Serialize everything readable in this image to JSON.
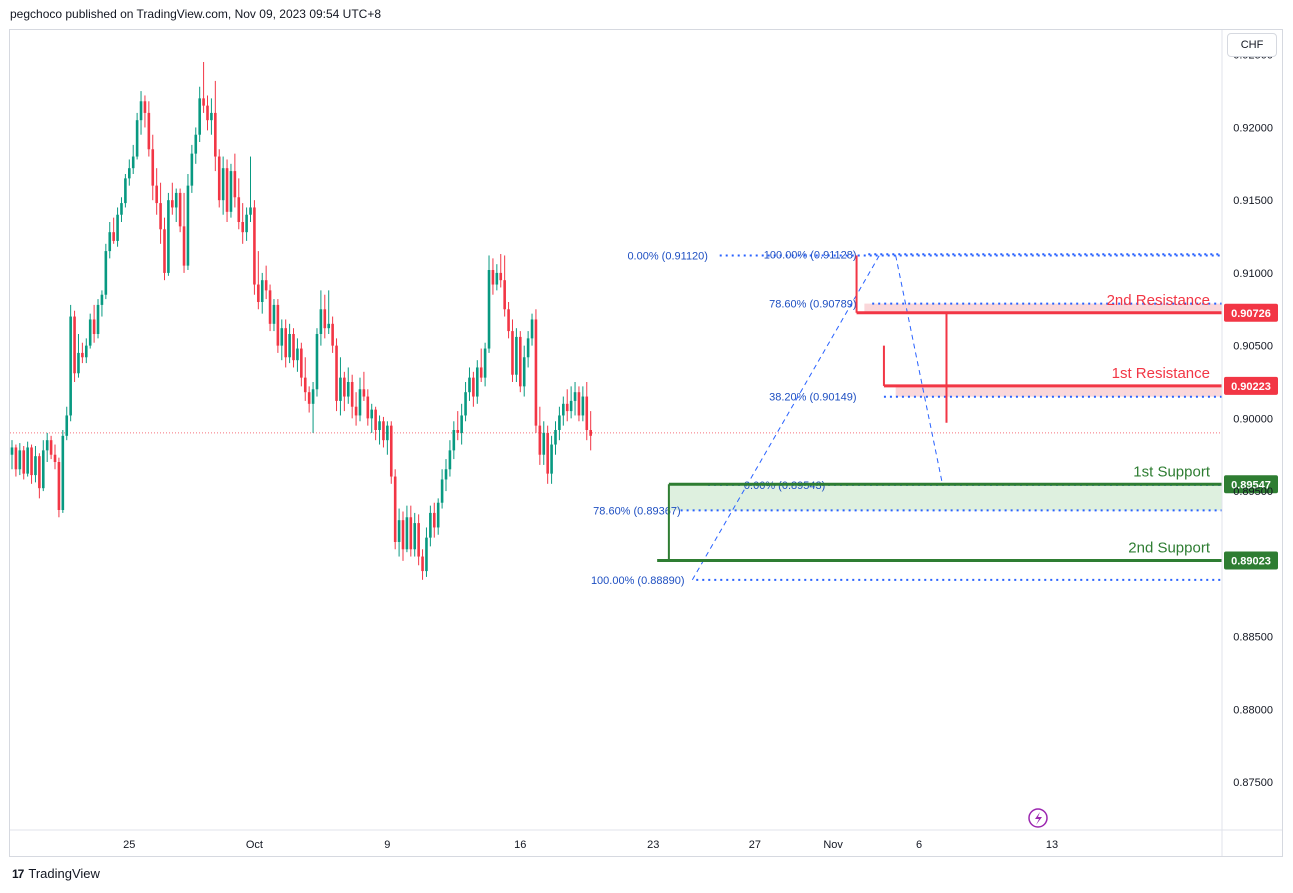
{
  "header": {
    "published_by": "pegchoco published on TradingView.com, Nov 09, 2023 09:54 UTC+8"
  },
  "currency_label": "CHF",
  "footer": {
    "brand": "TradingView",
    "logo_text": "17"
  },
  "chart_data": {
    "type": "candlestick",
    "title": "",
    "xlabel": "",
    "ylabel": "",
    "ylim": [
      0.8717,
      0.9267
    ],
    "y_ticks": [
      "0.92500",
      "0.92000",
      "0.91500",
      "0.91000",
      "0.90500",
      "0.90000",
      "0.89500",
      "0.88500",
      "0.88000",
      "0.87500"
    ],
    "x_ticks": [
      {
        "label": "25",
        "bar": 30
      },
      {
        "label": "Oct",
        "bar": 62
      },
      {
        "label": "9",
        "bar": 96
      },
      {
        "label": "16",
        "bar": 130
      },
      {
        "label": "23",
        "bar": 164
      },
      {
        "label": "27",
        "bar": 190
      },
      {
        "label": "Nov",
        "bar": 210
      },
      {
        "label": "6",
        "bar": 232
      },
      {
        "label": "13",
        "bar": 266
      }
    ],
    "last_price": 0.899,
    "price_labels": [
      {
        "text": "0.90726",
        "value": 0.90726,
        "color": "#f23645"
      },
      {
        "text": "0.90223",
        "value": 0.90223,
        "color": "#f23645"
      },
      {
        "text": "0.89547",
        "value": 0.89547,
        "color": "#2e7d32"
      },
      {
        "text": "0.89023",
        "value": 0.89023,
        "color": "#2e7d32"
      }
    ],
    "levels": [
      {
        "name": "2nd Resistance",
        "value": 0.90726,
        "color": "#f23645",
        "from_bar": 216
      },
      {
        "name": "1st Resistance",
        "value": 0.90223,
        "color": "#f23645",
        "from_bar": 223
      },
      {
        "name": "1st Support",
        "value": 0.89547,
        "color": "#2e7d32",
        "from_bar": 168
      },
      {
        "name": "2nd Support",
        "value": 0.89023,
        "color": "#2e7d32",
        "from_bar": 165
      }
    ],
    "fib_levels": [
      {
        "label": "0.00% (0.91120)",
        "value": 0.9112
      },
      {
        "label": "100.00% (0.91128)",
        "value": 0.91128
      },
      {
        "label": "78.60% (0.90789)",
        "value": 0.90789
      },
      {
        "label": "38.20% (0.90149)",
        "value": 0.90149
      },
      {
        "label": "0.00% (0.89543)",
        "value": 0.89543
      },
      {
        "label": "78.60% (0.89367)",
        "value": 0.89367
      },
      {
        "label": "100.00% (0.88890)",
        "value": 0.8889
      }
    ],
    "candles": [
      [
        0.8975,
        0.8985,
        0.8965,
        0.898
      ],
      [
        0.898,
        0.8982,
        0.896,
        0.8965
      ],
      [
        0.8965,
        0.8983,
        0.8961,
        0.8978
      ],
      [
        0.8978,
        0.8981,
        0.8958,
        0.8962
      ],
      [
        0.8962,
        0.8984,
        0.896,
        0.898
      ],
      [
        0.898,
        0.8982,
        0.8955,
        0.8961
      ],
      [
        0.8961,
        0.8981,
        0.8956,
        0.8974
      ],
      [
        0.8974,
        0.8976,
        0.8945,
        0.8952
      ],
      [
        0.8952,
        0.8985,
        0.895,
        0.8978
      ],
      [
        0.8978,
        0.899,
        0.897,
        0.8985
      ],
      [
        0.8985,
        0.8988,
        0.8972,
        0.8975
      ],
      [
        0.8975,
        0.8982,
        0.8965,
        0.897
      ],
      [
        0.897,
        0.8973,
        0.8932,
        0.8937
      ],
      [
        0.8937,
        0.8992,
        0.8935,
        0.8988
      ],
      [
        0.8988,
        0.9008,
        0.8985,
        0.9002
      ],
      [
        0.9002,
        0.9078,
        0.8998,
        0.907
      ],
      [
        0.907,
        0.9074,
        0.9025,
        0.9031
      ],
      [
        0.9031,
        0.9058,
        0.9028,
        0.9045
      ],
      [
        0.9045,
        0.9052,
        0.9038,
        0.9042
      ],
      [
        0.9042,
        0.9055,
        0.9038,
        0.905
      ],
      [
        0.905,
        0.9072,
        0.9048,
        0.9068
      ],
      [
        0.9068,
        0.9078,
        0.9052,
        0.9058
      ],
      [
        0.9058,
        0.9082,
        0.9055,
        0.9078
      ],
      [
        0.9078,
        0.9088,
        0.907,
        0.9085
      ],
      [
        0.9085,
        0.912,
        0.9082,
        0.9115
      ],
      [
        0.9115,
        0.9135,
        0.911,
        0.9128
      ],
      [
        0.9128,
        0.9138,
        0.912,
        0.9122
      ],
      [
        0.9122,
        0.9145,
        0.9118,
        0.914
      ],
      [
        0.914,
        0.9152,
        0.9135,
        0.9148
      ],
      [
        0.9148,
        0.9168,
        0.9145,
        0.9165
      ],
      [
        0.9165,
        0.9178,
        0.916,
        0.9172
      ],
      [
        0.9172,
        0.9188,
        0.9168,
        0.918
      ],
      [
        0.918,
        0.921,
        0.9178,
        0.9205
      ],
      [
        0.9205,
        0.9225,
        0.9195,
        0.9218
      ],
      [
        0.9218,
        0.9222,
        0.92,
        0.921
      ],
      [
        0.921,
        0.9218,
        0.918,
        0.9185
      ],
      [
        0.9185,
        0.9195,
        0.915,
        0.916
      ],
      [
        0.916,
        0.9172,
        0.914,
        0.9148
      ],
      [
        0.9148,
        0.9162,
        0.912,
        0.913
      ],
      [
        0.913,
        0.9138,
        0.9095,
        0.91
      ],
      [
        0.91,
        0.9155,
        0.9098,
        0.915
      ],
      [
        0.915,
        0.9162,
        0.914,
        0.9145
      ],
      [
        0.9145,
        0.9158,
        0.9135,
        0.9155
      ],
      [
        0.9155,
        0.9158,
        0.9128,
        0.9132
      ],
      [
        0.9132,
        0.9155,
        0.91,
        0.9105
      ],
      [
        0.9105,
        0.9168,
        0.9102,
        0.916
      ],
      [
        0.916,
        0.9188,
        0.9155,
        0.9182
      ],
      [
        0.9182,
        0.92,
        0.9175,
        0.9195
      ],
      [
        0.9195,
        0.9228,
        0.919,
        0.922
      ],
      [
        0.922,
        0.9245,
        0.921,
        0.9215
      ],
      [
        0.9215,
        0.9222,
        0.9198,
        0.9205
      ],
      [
        0.9205,
        0.922,
        0.9195,
        0.921
      ],
      [
        0.921,
        0.9232,
        0.917,
        0.918
      ],
      [
        0.918,
        0.9185,
        0.9145,
        0.915
      ],
      [
        0.915,
        0.918,
        0.914,
        0.9172
      ],
      [
        0.9172,
        0.9178,
        0.9135,
        0.9142
      ],
      [
        0.9142,
        0.9175,
        0.9138,
        0.917
      ],
      [
        0.917,
        0.9182,
        0.9145,
        0.9152
      ],
      [
        0.9152,
        0.9165,
        0.913,
        0.9135
      ],
      [
        0.9135,
        0.9148,
        0.912,
        0.9128
      ],
      [
        0.9128,
        0.9145,
        0.9122,
        0.914
      ],
      [
        0.914,
        0.918,
        0.9135,
        0.9145
      ],
      [
        0.9145,
        0.915,
        0.9085,
        0.9092
      ],
      [
        0.9092,
        0.9115,
        0.9075,
        0.908
      ],
      [
        0.908,
        0.91,
        0.9072,
        0.9095
      ],
      [
        0.9095,
        0.9105,
        0.9082,
        0.9088
      ],
      [
        0.9088,
        0.9092,
        0.906,
        0.9065
      ],
      [
        0.9065,
        0.9082,
        0.906,
        0.9078
      ],
      [
        0.9078,
        0.9082,
        0.9045,
        0.905
      ],
      [
        0.905,
        0.9068,
        0.904,
        0.9062
      ],
      [
        0.9062,
        0.9068,
        0.9035,
        0.9042
      ],
      [
        0.9042,
        0.9065,
        0.9038,
        0.9058
      ],
      [
        0.9058,
        0.9062,
        0.9035,
        0.904
      ],
      [
        0.904,
        0.9055,
        0.9032,
        0.9048
      ],
      [
        0.9048,
        0.9052,
        0.9022,
        0.9028
      ],
      [
        0.9028,
        0.9042,
        0.9012,
        0.9018
      ],
      [
        0.9018,
        0.9022,
        0.9004,
        0.901
      ],
      [
        0.901,
        0.9025,
        0.899,
        0.902
      ],
      [
        0.902,
        0.9062,
        0.9015,
        0.9058
      ],
      [
        0.9058,
        0.9088,
        0.905,
        0.9075
      ],
      [
        0.9075,
        0.9085,
        0.9055,
        0.9062
      ],
      [
        0.9062,
        0.9088,
        0.9058,
        0.9065
      ],
      [
        0.9065,
        0.907,
        0.9045,
        0.905
      ],
      [
        0.905,
        0.9055,
        0.9005,
        0.9012
      ],
      [
        0.9012,
        0.9042,
        0.9002,
        0.9028
      ],
      [
        0.9028,
        0.9032,
        0.9005,
        0.9015
      ],
      [
        0.9015,
        0.9035,
        0.901,
        0.9025
      ],
      [
        0.9025,
        0.903,
        0.9,
        0.9008
      ],
      [
        0.9008,
        0.9018,
        0.8995,
        0.9002
      ],
      [
        0.9002,
        0.9028,
        0.8998,
        0.902
      ],
      [
        0.902,
        0.9032,
        0.9012,
        0.9015
      ],
      [
        0.9015,
        0.902,
        0.8995,
        0.9
      ],
      [
        0.9,
        0.901,
        0.899,
        0.9006
      ],
      [
        0.9006,
        0.9008,
        0.8985,
        0.8992
      ],
      [
        0.8992,
        0.9002,
        0.8982,
        0.8998
      ],
      [
        0.8998,
        0.9001,
        0.898,
        0.8985
      ],
      [
        0.8985,
        0.8998,
        0.8975,
        0.8995
      ],
      [
        0.8995,
        0.8998,
        0.8955,
        0.896
      ],
      [
        0.896,
        0.8965,
        0.891,
        0.8915
      ],
      [
        0.8915,
        0.8938,
        0.8905,
        0.893
      ],
      [
        0.893,
        0.8936,
        0.8902,
        0.891
      ],
      [
        0.891,
        0.894,
        0.8908,
        0.8932
      ],
      [
        0.8932,
        0.894,
        0.8905,
        0.891
      ],
      [
        0.891,
        0.8935,
        0.8905,
        0.8928
      ],
      [
        0.8928,
        0.8934,
        0.8899,
        0.8905
      ],
      [
        0.8905,
        0.891,
        0.8889,
        0.8895
      ],
      [
        0.8895,
        0.8925,
        0.8891,
        0.8918
      ],
      [
        0.8918,
        0.894,
        0.8912,
        0.8935
      ],
      [
        0.8935,
        0.8942,
        0.8918,
        0.8925
      ],
      [
        0.8925,
        0.8945,
        0.892,
        0.8942
      ],
      [
        0.8942,
        0.8965,
        0.8938,
        0.8958
      ],
      [
        0.8958,
        0.8972,
        0.895,
        0.8965
      ],
      [
        0.8965,
        0.8985,
        0.896,
        0.8978
      ],
      [
        0.8978,
        0.8998,
        0.8972,
        0.8992
      ],
      [
        0.8992,
        0.9005,
        0.8985,
        0.899
      ],
      [
        0.899,
        0.901,
        0.8982,
        0.9002
      ],
      [
        0.9002,
        0.9025,
        0.8998,
        0.9018
      ],
      [
        0.9018,
        0.9035,
        0.9012,
        0.9028
      ],
      [
        0.9028,
        0.9032,
        0.9008,
        0.9015
      ],
      [
        0.9015,
        0.904,
        0.901,
        0.9035
      ],
      [
        0.9035,
        0.9048,
        0.9025,
        0.9028
      ],
      [
        0.9028,
        0.9052,
        0.9022,
        0.9048
      ],
      [
        0.9048,
        0.9112,
        0.9045,
        0.9102
      ],
      [
        0.9102,
        0.911,
        0.9085,
        0.9092
      ],
      [
        0.9092,
        0.9106,
        0.9088,
        0.91
      ],
      [
        0.91,
        0.9113,
        0.909,
        0.9095
      ],
      [
        0.9095,
        0.9112,
        0.907,
        0.9075
      ],
      [
        0.9075,
        0.908,
        0.9055,
        0.906
      ],
      [
        0.906,
        0.9068,
        0.9025,
        0.903
      ],
      [
        0.903,
        0.9062,
        0.9025,
        0.9056
      ],
      [
        0.9056,
        0.906,
        0.9018,
        0.9022
      ],
      [
        0.9022,
        0.905,
        0.9015,
        0.9042
      ],
      [
        0.9042,
        0.906,
        0.9035,
        0.9055
      ],
      [
        0.9055,
        0.9072,
        0.905,
        0.9068
      ],
      [
        0.9068,
        0.9075,
        0.899,
        0.8995
      ],
      [
        0.8995,
        0.9008,
        0.8968,
        0.8975
      ],
      [
        0.8975,
        0.8998,
        0.8968,
        0.899
      ],
      [
        0.899,
        0.8995,
        0.8955,
        0.8962
      ],
      [
        0.8962,
        0.8988,
        0.8955,
        0.8982
      ],
      [
        0.8982,
        0.8998,
        0.8975,
        0.8992
      ],
      [
        0.8992,
        0.9008,
        0.8985,
        0.9002
      ],
      [
        0.9002,
        0.9015,
        0.8995,
        0.901
      ],
      [
        0.901,
        0.902,
        0.8998,
        0.9005
      ],
      [
        0.9005,
        0.9022,
        0.9,
        0.9012
      ],
      [
        0.9012,
        0.9025,
        0.9002,
        0.9018
      ],
      [
        0.9018,
        0.9022,
        0.8998,
        0.9002
      ],
      [
        0.9002,
        0.9022,
        0.8998,
        0.9015
      ],
      [
        0.9015,
        0.9025,
        0.8985,
        0.8992
      ],
      [
        0.8992,
        0.9005,
        0.8978,
        0.8988
      ]
    ]
  }
}
